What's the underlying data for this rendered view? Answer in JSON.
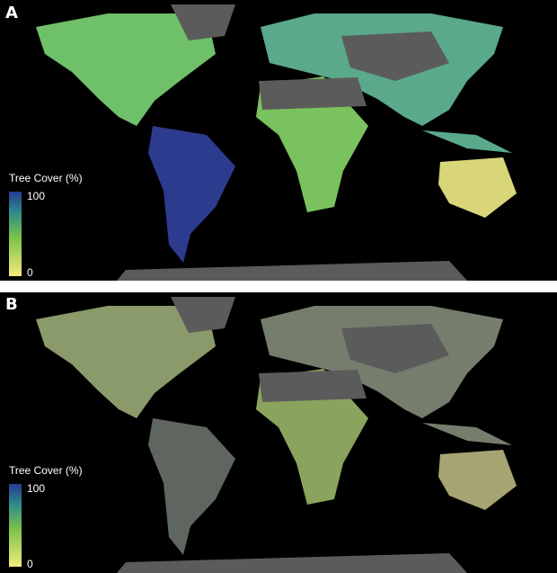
{
  "panels": [
    {
      "label": "A",
      "legend": {
        "title": "Tree Cover (%)",
        "max": "100",
        "min": "0"
      }
    },
    {
      "label": "B",
      "legend": {
        "title": "Tree Cover (%)",
        "max": "100",
        "min": "0"
      }
    }
  ]
}
